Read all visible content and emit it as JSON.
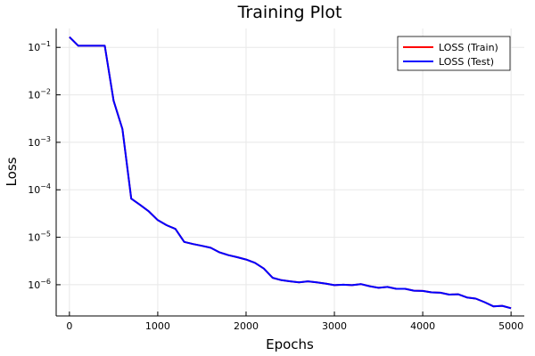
{
  "chart_data": {
    "type": "line",
    "title": "Training Plot",
    "xlabel": "Epochs",
    "ylabel": "Loss",
    "xlim": [
      -150,
      5150
    ],
    "ylim": [
      2.2e-07,
      0.25
    ],
    "yscale": "log",
    "grid": true,
    "legend_position": "top-right",
    "x_ticks": [
      0,
      1000,
      2000,
      3000,
      4000,
      5000
    ],
    "x_tick_labels": [
      "0",
      "1000",
      "2000",
      "3000",
      "4000",
      "5000"
    ],
    "y_ticks": [
      1e-06,
      1e-05,
      0.0001,
      0.001,
      0.01,
      0.1
    ],
    "y_tick_labels": [
      {
        "base": "10",
        "exp": "−6"
      },
      {
        "base": "10",
        "exp": "−5"
      },
      {
        "base": "10",
        "exp": "−4"
      },
      {
        "base": "10",
        "exp": "−3"
      },
      {
        "base": "10",
        "exp": "−2"
      },
      {
        "base": "10",
        "exp": "−1"
      }
    ],
    "x": [
      0,
      100,
      200,
      300,
      400,
      500,
      600,
      700,
      800,
      900,
      1000,
      1100,
      1200,
      1300,
      1400,
      1500,
      1600,
      1700,
      1800,
      1900,
      2000,
      2100,
      2200,
      2300,
      2400,
      2500,
      2600,
      2700,
      2800,
      2900,
      3000,
      3100,
      3200,
      3300,
      3400,
      3500,
      3600,
      3700,
      3800,
      3900,
      4000,
      4100,
      4200,
      4300,
      4400,
      4500,
      4600,
      4700,
      4800,
      4900,
      5000
    ],
    "series": [
      {
        "name": "LOSS (Train)",
        "color": "#ff0000",
        "values": [
          0.165,
          0.108,
          0.108,
          0.108,
          0.108,
          0.0075,
          0.0019,
          6.5e-05,
          4.8e-05,
          3.5e-05,
          2.3e-05,
          1.8e-05,
          1.5e-05,
          8e-06,
          7.2e-06,
          6.6e-06,
          6e-06,
          4.8e-06,
          4.2e-06,
          3.8e-06,
          3.4e-06,
          2.9e-06,
          2.2e-06,
          1.4e-06,
          1.25e-06,
          1.18e-06,
          1.12e-06,
          1.18e-06,
          1.12e-06,
          1.06e-06,
          9.8e-07,
          1e-06,
          9.8e-07,
          1.03e-06,
          9.3e-07,
          8.6e-07,
          9e-07,
          8.2e-07,
          8.2e-07,
          7.5e-07,
          7.4e-07,
          6.9e-07,
          6.8e-07,
          6.2e-07,
          6.3e-07,
          5.4e-07,
          5.1e-07,
          4.3e-07,
          3.5e-07,
          3.6e-07,
          3.2e-07
        ]
      },
      {
        "name": "LOSS (Test)",
        "color": "#0000ff",
        "values": [
          0.165,
          0.108,
          0.108,
          0.108,
          0.108,
          0.0075,
          0.0019,
          6.5e-05,
          4.8e-05,
          3.5e-05,
          2.3e-05,
          1.8e-05,
          1.5e-05,
          8e-06,
          7.2e-06,
          6.6e-06,
          6e-06,
          4.8e-06,
          4.2e-06,
          3.8e-06,
          3.4e-06,
          2.9e-06,
          2.2e-06,
          1.4e-06,
          1.25e-06,
          1.18e-06,
          1.12e-06,
          1.18e-06,
          1.12e-06,
          1.06e-06,
          9.8e-07,
          1e-06,
          9.8e-07,
          1.03e-06,
          9.3e-07,
          8.6e-07,
          9e-07,
          8.2e-07,
          8.2e-07,
          7.5e-07,
          7.4e-07,
          6.9e-07,
          6.8e-07,
          6.2e-07,
          6.3e-07,
          5.4e-07,
          5.1e-07,
          4.3e-07,
          3.5e-07,
          3.6e-07,
          3.2e-07
        ]
      }
    ]
  }
}
